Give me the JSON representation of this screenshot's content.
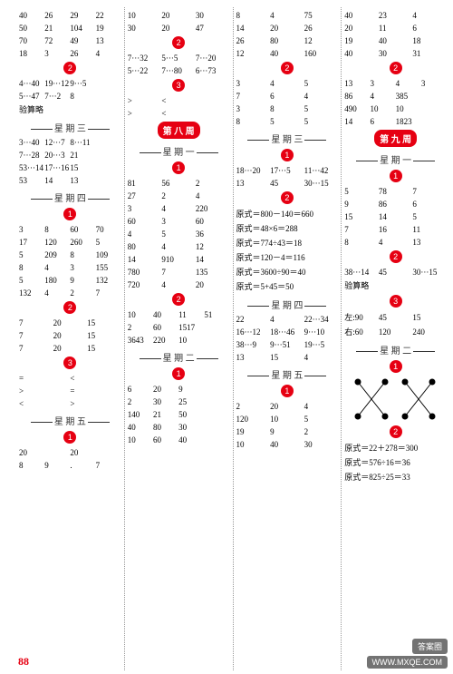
{
  "page_number": "88",
  "watermarks": {
    "top": "答案圈",
    "bottom": "WWW.MXQE.COM"
  },
  "columns": [
    {
      "blocks": [
        {
          "type": "grid4",
          "rows": [
            [
              "40",
              "26",
              "29",
              "22"
            ],
            [
              "50",
              "21",
              "104",
              "19"
            ],
            [
              "70",
              "72",
              "49",
              "13"
            ],
            [
              "18",
              "3",
              "26",
              "4"
            ]
          ]
        },
        {
          "type": "badge",
          "val": "2"
        },
        {
          "type": "grid4",
          "rows": [
            [
              "4···40",
              "19···12",
              "9···5",
              ""
            ],
            [
              "5···47",
              "7···2",
              "8",
              ""
            ]
          ]
        },
        {
          "type": "text",
          "val": "验算略"
        },
        {
          "type": "day",
          "val": "星 期 三"
        },
        {
          "type": "grid4",
          "rows": [
            [
              "3···40",
              "12···7",
              "8···11",
              ""
            ],
            [
              "7···28",
              "20···3",
              "21",
              ""
            ],
            [
              "53···14",
              "17···16",
              "15",
              ""
            ],
            [
              "53",
              "14",
              "13",
              ""
            ]
          ]
        },
        {
          "type": "day",
          "val": "星 期 四"
        },
        {
          "type": "badge",
          "val": "1"
        },
        {
          "type": "grid4",
          "rows": [
            [
              "3",
              "8",
              "60",
              "70"
            ],
            [
              "17",
              "120",
              "260",
              "5"
            ],
            [
              "5",
              "209",
              "8",
              "109"
            ],
            [
              "8",
              "4",
              "3",
              "155"
            ],
            [
              "5",
              "180",
              "9",
              "132"
            ],
            [
              "132",
              "4",
              "2",
              "7"
            ]
          ]
        },
        {
          "type": "badge",
          "val": "2"
        },
        {
          "type": "grid3",
          "rows": [
            [
              "7",
              "20",
              "15"
            ],
            [
              "7",
              "20",
              "15"
            ],
            [
              "7",
              "20",
              "15"
            ]
          ]
        },
        {
          "type": "badge",
          "val": "3"
        },
        {
          "type": "grid4",
          "rows": [
            [
              "=",
              "",
              "<",
              ""
            ],
            [
              ">",
              "",
              "=",
              ""
            ],
            [
              "<",
              "",
              ">",
              ""
            ]
          ]
        },
        {
          "type": "day",
          "val": "星 期 五"
        },
        {
          "type": "badge",
          "val": "1"
        },
        {
          "type": "grid4",
          "rows": [
            [
              "20",
              "",
              "20",
              ""
            ],
            [
              "8",
              "9",
              ".",
              "7"
            ]
          ]
        }
      ]
    },
    {
      "blocks": [
        {
          "type": "grid3",
          "rows": [
            [
              "10",
              "20",
              "30"
            ],
            [
              "30",
              "20",
              "47"
            ]
          ]
        },
        {
          "type": "badge",
          "val": "2"
        },
        {
          "type": "grid3",
          "rows": [
            [
              "7···32",
              "5···5",
              "7···20"
            ],
            [
              "5···22",
              "7···80",
              "6···73"
            ]
          ]
        },
        {
          "type": "badge",
          "val": "3"
        },
        {
          "type": "grid3",
          "rows": [
            [
              ">",
              "<",
              ""
            ],
            [
              ">",
              "<",
              ""
            ]
          ]
        },
        {
          "type": "weekbadge",
          "val": "第 八 周"
        },
        {
          "type": "day",
          "val": "星 期 一"
        },
        {
          "type": "badge",
          "val": "1"
        },
        {
          "type": "grid3",
          "rows": [
            [
              "81",
              "56",
              "2"
            ],
            [
              "27",
              "2",
              "4"
            ],
            [
              "3",
              "4",
              "220"
            ],
            [
              "60",
              "3",
              "60"
            ],
            [
              "4",
              "5",
              "36"
            ],
            [
              "80",
              "4",
              "12"
            ],
            [
              "14",
              "910",
              "14"
            ],
            [
              "780",
              "7",
              "135"
            ],
            [
              "720",
              "4",
              "20"
            ]
          ]
        },
        {
          "type": "badge",
          "val": "2"
        },
        {
          "type": "grid4",
          "rows": [
            [
              "10",
              "40",
              "11",
              "51"
            ],
            [
              "2",
              "60",
              "1517",
              ""
            ],
            [
              "3643",
              "220",
              "10",
              ""
            ]
          ]
        },
        {
          "type": "day",
          "val": "星 期 二"
        },
        {
          "type": "badge",
          "val": "1"
        },
        {
          "type": "grid4",
          "rows": [
            [
              "6",
              "20",
              "9",
              ""
            ],
            [
              "2",
              "30",
              "25",
              ""
            ],
            [
              "140",
              "21",
              "50",
              ""
            ],
            [
              "40",
              "80",
              "30",
              ""
            ],
            [
              "10",
              "60",
              "40",
              ""
            ]
          ]
        }
      ]
    },
    {
      "blocks": [
        {
          "type": "grid3",
          "rows": [
            [
              "8",
              "4",
              "75"
            ],
            [
              "14",
              "20",
              "26"
            ],
            [
              "26",
              "80",
              "12"
            ],
            [
              "12",
              "40",
              "160"
            ]
          ]
        },
        {
          "type": "badge",
          "val": "2"
        },
        {
          "type": "grid3",
          "rows": [
            [
              "3",
              "4",
              "5"
            ],
            [
              "7",
              "6",
              "4"
            ],
            [
              "3",
              "8",
              "5"
            ],
            [
              "8",
              "5",
              "5"
            ]
          ]
        },
        {
          "type": "day",
          "val": "星 期 三"
        },
        {
          "type": "badge",
          "val": "1"
        },
        {
          "type": "grid3",
          "rows": [
            [
              "18···20",
              "17···5",
              "11···42"
            ],
            [
              "13",
              "45",
              "30···15"
            ]
          ]
        },
        {
          "type": "badge",
          "val": "2"
        },
        {
          "type": "formula",
          "val": "原式＝800－140＝660"
        },
        {
          "type": "formula",
          "val": "原式＝48×6＝288"
        },
        {
          "type": "formula",
          "val": "原式＝774÷43＝18"
        },
        {
          "type": "formula",
          "val": "原式＝120－4＝116"
        },
        {
          "type": "formula",
          "val": "原式＝3600÷90＝40"
        },
        {
          "type": "formula",
          "val": "原式＝5+45＝50"
        },
        {
          "type": "day",
          "val": "星 期 四"
        },
        {
          "type": "grid3",
          "rows": [
            [
              "22",
              "4",
              "22···34"
            ],
            [
              "16···12",
              "18···46",
              "9···10"
            ],
            [
              "38···9",
              "9···51",
              "19···5"
            ],
            [
              "13",
              "15",
              "4"
            ]
          ]
        },
        {
          "type": "day",
          "val": "星 期 五"
        },
        {
          "type": "badge",
          "val": "1"
        },
        {
          "type": "grid3",
          "rows": [
            [
              "2",
              "20",
              "4"
            ],
            [
              "120",
              "10",
              "5"
            ],
            [
              "19",
              "9",
              "2"
            ],
            [
              "10",
              "40",
              "30"
            ]
          ]
        }
      ]
    },
    {
      "blocks": [
        {
          "type": "grid3",
          "rows": [
            [
              "40",
              "23",
              "4"
            ],
            [
              "20",
              "11",
              "6"
            ],
            [
              "19",
              "40",
              "18"
            ],
            [
              "40",
              "30",
              "31"
            ]
          ]
        },
        {
          "type": "badge",
          "val": "2"
        },
        {
          "type": "grid4",
          "rows": [
            [
              "13",
              "3",
              "4",
              "3"
            ],
            [
              "86",
              "4",
              "385",
              ""
            ],
            [
              "490",
              "10",
              "10",
              ""
            ],
            [
              "14",
              "6",
              "1823",
              ""
            ]
          ]
        },
        {
          "type": "weekbadge",
          "val": "第 九 周"
        },
        {
          "type": "day",
          "val": "星 期 一"
        },
        {
          "type": "badge",
          "val": "1"
        },
        {
          "type": "grid3",
          "rows": [
            [
              "5",
              "78",
              "7"
            ],
            [
              "9",
              "86",
              "6"
            ],
            [
              "15",
              "14",
              "5"
            ],
            [
              "7",
              "16",
              "11"
            ],
            [
              "8",
              "4",
              "13"
            ]
          ]
        },
        {
          "type": "badge",
          "val": "2"
        },
        {
          "type": "grid3",
          "rows": [
            [
              "38···14",
              "45",
              "30···15"
            ]
          ]
        },
        {
          "type": "text",
          "val": "验算略"
        },
        {
          "type": "badge",
          "val": "3"
        },
        {
          "type": "grid3p",
          "rows": [
            [
              "左:90",
              "45",
              "15"
            ],
            [
              "右:60",
              "120",
              "240"
            ]
          ]
        },
        {
          "type": "day",
          "val": "星 期 二"
        },
        {
          "type": "badge",
          "val": "1"
        },
        {
          "type": "cross"
        },
        {
          "type": "badge",
          "val": "2"
        },
        {
          "type": "formula",
          "val": "原式＝22＋278＝300"
        },
        {
          "type": "formula",
          "val": "原式＝576÷16＝36"
        },
        {
          "type": "formula",
          "val": "原式＝825÷25＝33"
        }
      ]
    }
  ]
}
